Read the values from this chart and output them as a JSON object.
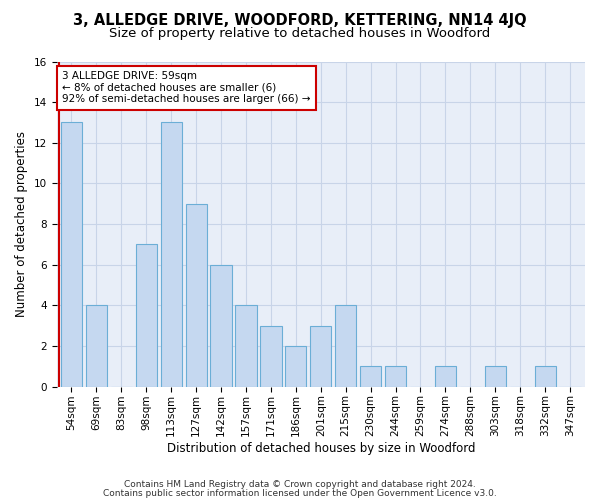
{
  "title1": "3, ALLEDGE DRIVE, WOODFORD, KETTERING, NN14 4JQ",
  "title2": "Size of property relative to detached houses in Woodford",
  "xlabel": "Distribution of detached houses by size in Woodford",
  "ylabel": "Number of detached properties",
  "categories": [
    "54sqm",
    "69sqm",
    "83sqm",
    "98sqm",
    "113sqm",
    "127sqm",
    "142sqm",
    "157sqm",
    "171sqm",
    "186sqm",
    "201sqm",
    "215sqm",
    "230sqm",
    "244sqm",
    "259sqm",
    "274sqm",
    "288sqm",
    "303sqm",
    "318sqm",
    "332sqm",
    "347sqm"
  ],
  "values": [
    13,
    4,
    0,
    7,
    13,
    9,
    6,
    4,
    3,
    2,
    3,
    4,
    1,
    1,
    0,
    1,
    0,
    1,
    0,
    1,
    0
  ],
  "bar_color": "#c5d8f0",
  "bar_edge_color": "#6baed6",
  "annotation_line1": "3 ALLEDGE DRIVE: 59sqm",
  "annotation_line2": "← 8% of detached houses are smaller (6)",
  "annotation_line3": "92% of semi-detached houses are larger (66) →",
  "annotation_box_facecolor": "#ffffff",
  "annotation_box_edgecolor": "#cc0000",
  "vline_color": "#cc0000",
  "ylim_min": 0,
  "ylim_max": 16,
  "yticks": [
    0,
    2,
    4,
    6,
    8,
    10,
    12,
    14,
    16
  ],
  "grid_color": "#c8d4e8",
  "bg_color": "#e8eef8",
  "footer1": "Contains HM Land Registry data © Crown copyright and database right 2024.",
  "footer2": "Contains public sector information licensed under the Open Government Licence v3.0.",
  "title1_fontsize": 10.5,
  "title2_fontsize": 9.5,
  "xlabel_fontsize": 8.5,
  "ylabel_fontsize": 8.5,
  "tick_fontsize": 7.5,
  "annotation_fontsize": 7.5,
  "footer_fontsize": 6.5
}
